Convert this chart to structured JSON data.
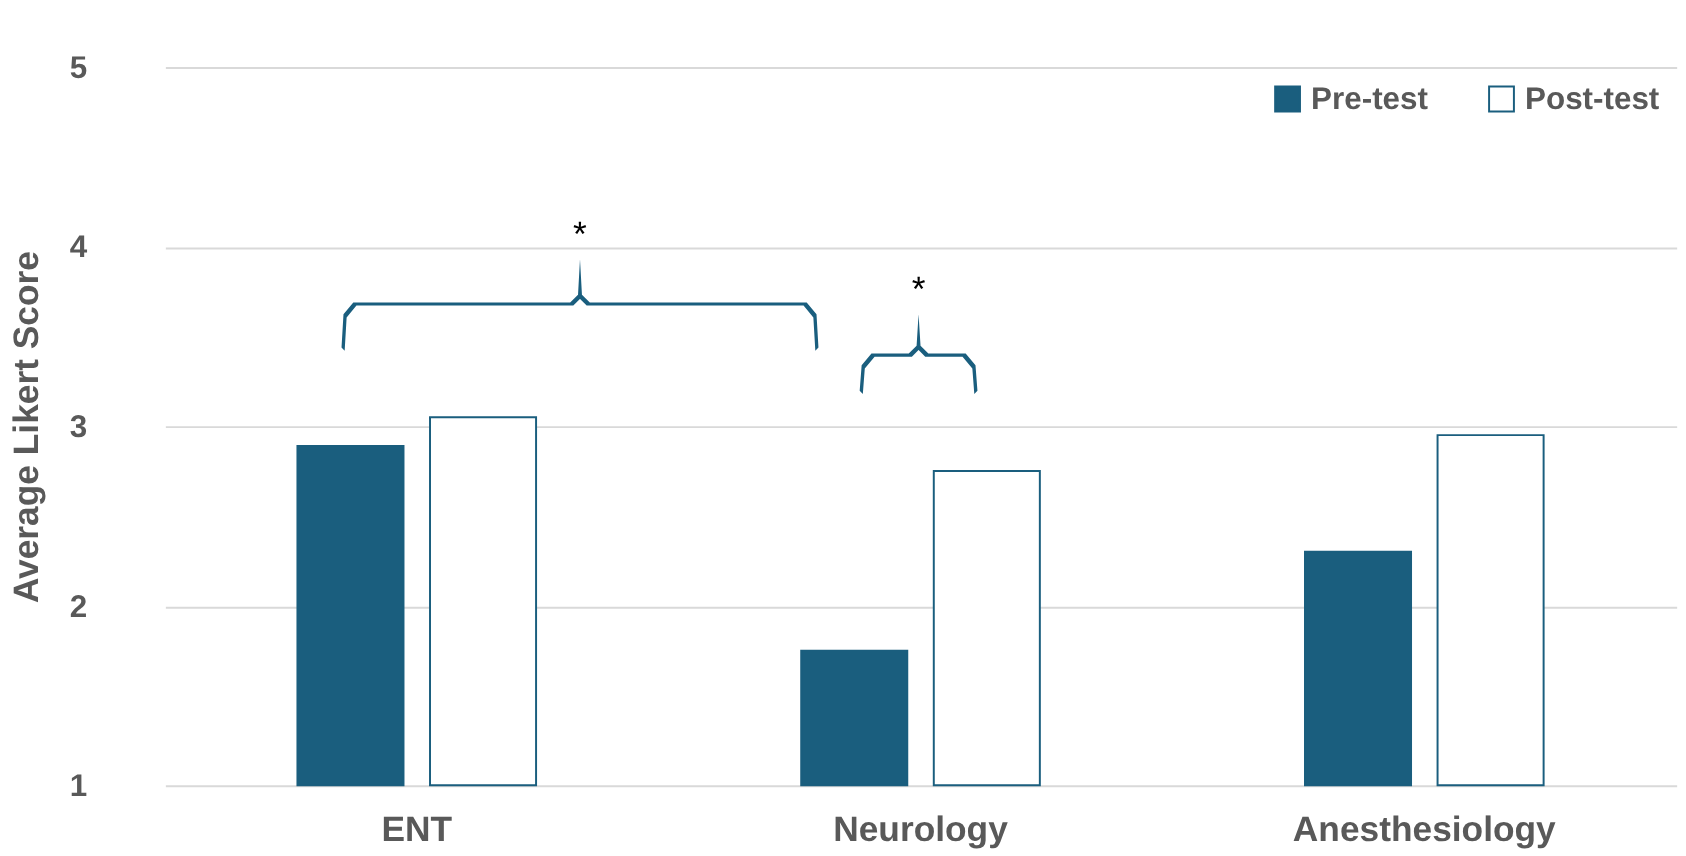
{
  "chart_data": {
    "type": "bar",
    "ylabel": "Average Likert Score",
    "categories": [
      "ENT",
      "Neurology",
      "Anesthesiology"
    ],
    "series": [
      {
        "name": "Pre-test",
        "color": "#1a5e7e",
        "values": [
          2.89,
          1.75,
          2.3
        ]
      },
      {
        "name": "Post-test",
        "color": "#ffffff",
        "values": [
          3.05,
          2.75,
          2.95
        ]
      }
    ],
    "ylim": [
      1,
      5
    ],
    "yticks": [
      1,
      2,
      3,
      4,
      5
    ],
    "grid": "y",
    "legend": "top right",
    "annotations": [
      "*",
      "*"
    ]
  }
}
